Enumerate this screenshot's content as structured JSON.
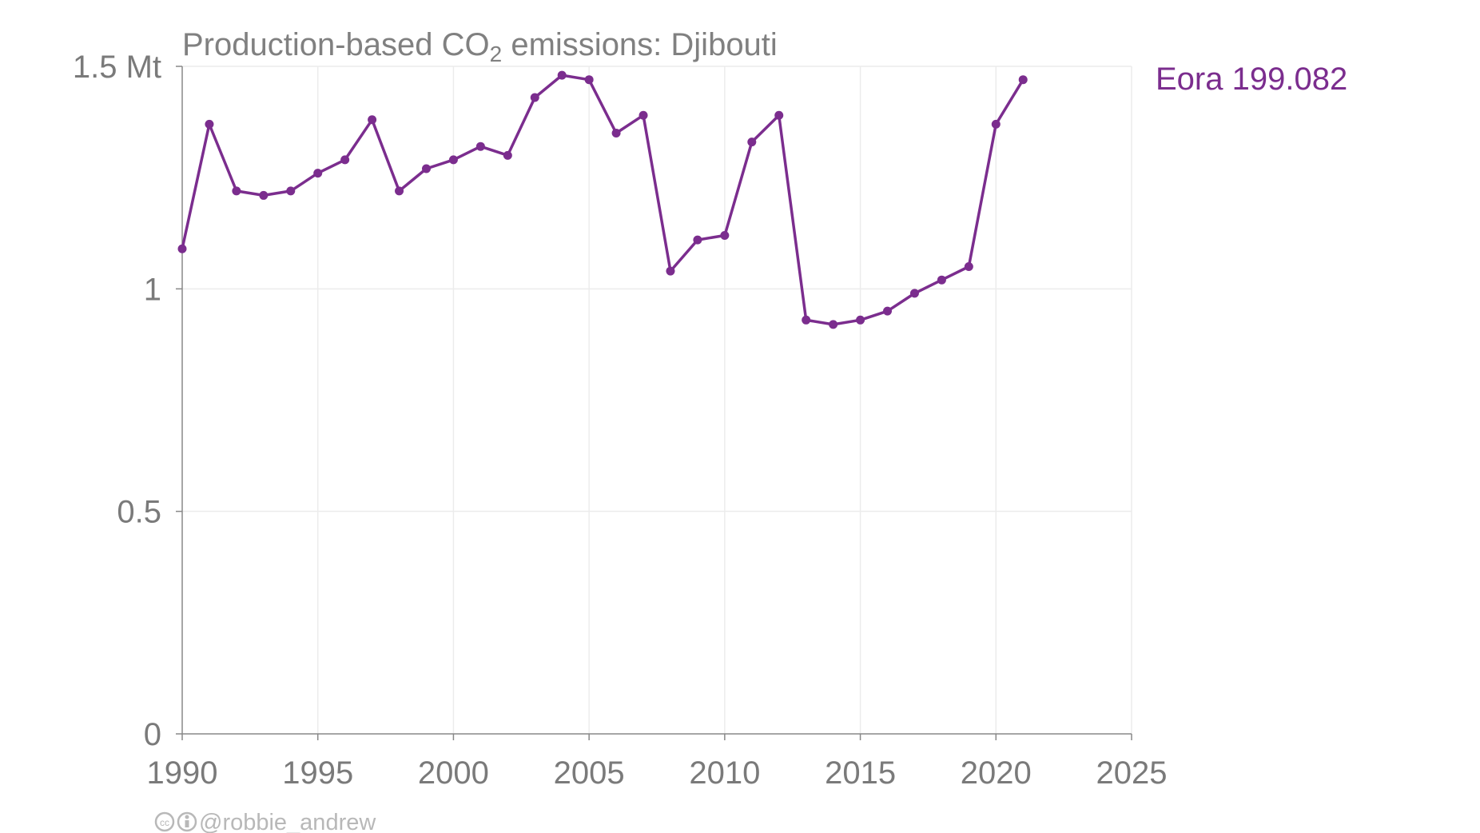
{
  "chart_data": {
    "type": "line",
    "title": {
      "prefix": "Production-based CO",
      "subscript": "2",
      "suffix": " emissions: Djibouti"
    },
    "y_unit_label": "Mt",
    "xlim": [
      1990,
      2025
    ],
    "ylim": [
      0,
      1.5
    ],
    "x_ticks": [
      "1990",
      "1995",
      "2000",
      "2005",
      "2010",
      "2015",
      "2020",
      "2025"
    ],
    "y_ticks": [
      "0",
      "0.5",
      "1",
      "1.5"
    ],
    "grid": true,
    "legend_placement": "top-right",
    "series": [
      {
        "name": "Eora 199.082",
        "color": "#7B2D8E",
        "x": [
          1990,
          1991,
          1992,
          1993,
          1994,
          1995,
          1996,
          1997,
          1998,
          1999,
          2000,
          2001,
          2002,
          2003,
          2004,
          2005,
          2006,
          2007,
          2008,
          2009,
          2010,
          2011,
          2012,
          2013,
          2014,
          2015,
          2016,
          2017,
          2018,
          2019,
          2020,
          2021
        ],
        "y": [
          1.09,
          1.37,
          1.22,
          1.21,
          1.22,
          1.26,
          1.29,
          1.38,
          1.22,
          1.27,
          1.29,
          1.32,
          1.3,
          1.43,
          1.48,
          1.47,
          1.35,
          1.39,
          1.04,
          1.11,
          1.12,
          1.33,
          1.39,
          0.93,
          0.92,
          0.93,
          0.95,
          0.99,
          1.02,
          1.05,
          1.37,
          1.47
        ]
      }
    ]
  },
  "credit": {
    "icons": [
      "cc-icon",
      "attribution-icon"
    ],
    "handle": "@robbie_andrew"
  }
}
